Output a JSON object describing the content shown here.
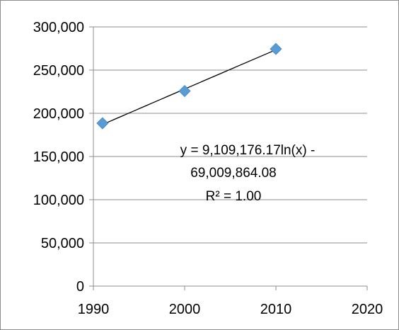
{
  "chart_data": {
    "type": "scatter",
    "title": "",
    "xlabel": "",
    "ylabel": "",
    "xlim": [
      1990,
      2020
    ],
    "ylim": [
      0,
      300000
    ],
    "x_ticks": [
      1990,
      2000,
      2010,
      2020
    ],
    "y_ticks": [
      0,
      50000,
      100000,
      150000,
      200000,
      250000,
      300000
    ],
    "x_tick_labels": [
      "1990",
      "2000",
      "2010",
      "2020"
    ],
    "y_tick_labels": [
      "0",
      "50,000",
      "100,000",
      "150,000",
      "200,000",
      "250,000",
      "300,000"
    ],
    "grid": "horizontal",
    "legend": "none",
    "series": [
      {
        "x": [
          1991,
          2000,
          2010
        ],
        "y": [
          188500,
          225800,
          274500
        ],
        "color": "#5b9bd5",
        "marker": "diamond"
      }
    ],
    "trendline": {
      "type": "logarithmic",
      "a": 9109176.17,
      "b": -69009864.08,
      "x_range": [
        1991,
        2010
      ],
      "color": "#000000"
    },
    "annotation": {
      "lines": [
        "y = 9,109,176.17ln(x) -",
        "69,009,864.08",
        "R² = 1.00"
      ]
    }
  }
}
